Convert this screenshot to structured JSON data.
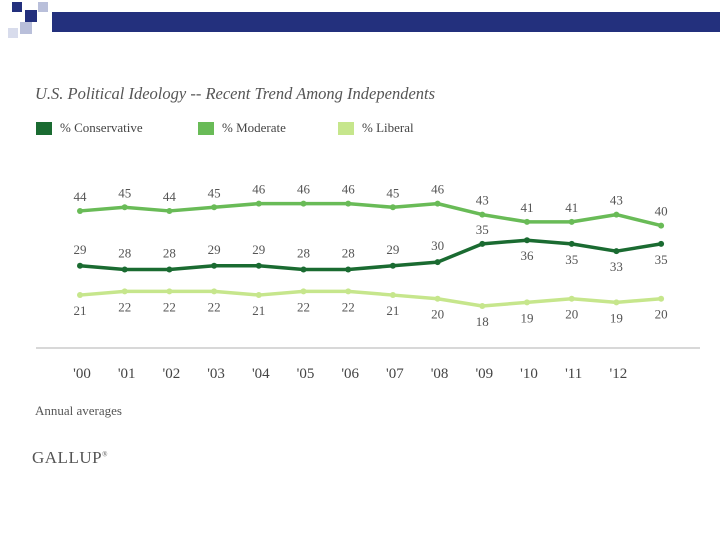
{
  "theme": {
    "conservative_color": "#1a6b31",
    "moderate_color": "#69bb57",
    "liberal_color": "#c6e68c",
    "deco_navy": "#23307d",
    "deco_light": "#b9bfda",
    "axis_color": "#cccccc"
  },
  "footnote": "Annual averages",
  "logo": "GALLUP",
  "chart_data": {
    "type": "line",
    "title": "U.S. Political Ideology -- Recent Trend Among Independents",
    "categories": [
      "'00",
      "'01",
      "'02",
      "'03",
      "'04",
      "'05",
      "'06",
      "'07",
      "'08",
      "'09",
      "'10",
      "'11",
      "'12",
      ""
    ],
    "series": [
      {
        "name": "% Conservative",
        "values": [
          29,
          28,
          28,
          29,
          29,
          28,
          28,
          29,
          30,
          35,
          36,
          35,
          33,
          35
        ]
      },
      {
        "name": "% Moderate",
        "values": [
          44,
          45,
          44,
          45,
          46,
          46,
          46,
          45,
          46,
          43,
          41,
          41,
          43,
          40
        ]
      },
      {
        "name": "% Liberal",
        "values": [
          21,
          22,
          22,
          22,
          21,
          22,
          22,
          21,
          20,
          18,
          19,
          20,
          19,
          20
        ]
      }
    ],
    "xlabel": "",
    "ylabel": "",
    "grid": false,
    "legend": "top-left"
  }
}
